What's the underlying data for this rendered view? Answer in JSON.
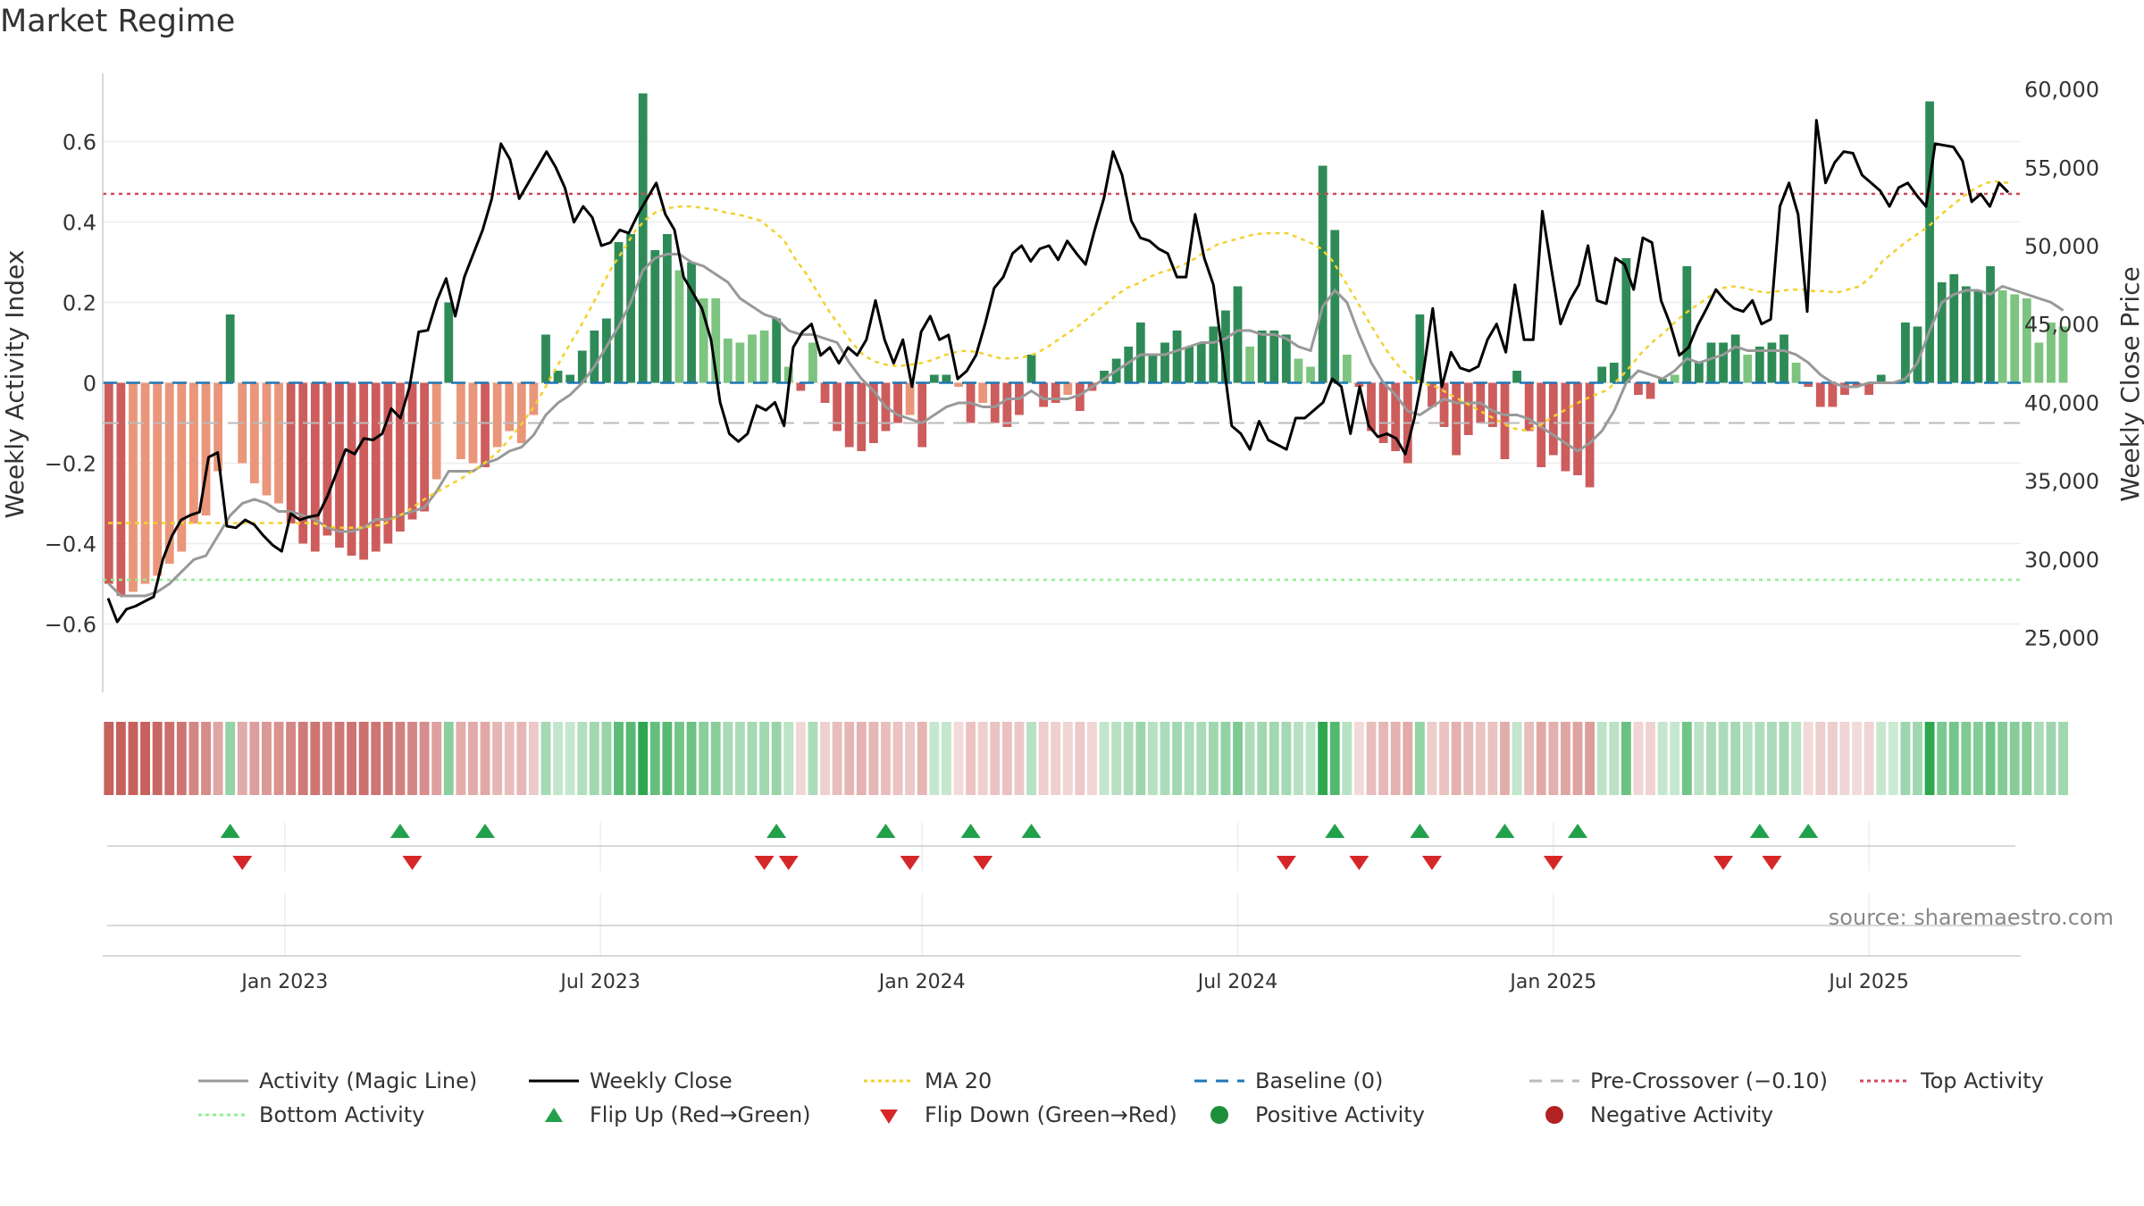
{
  "title": "Market Regime",
  "source": "source: sharemaestro.com",
  "colors": {
    "strongGreen": "#2e8b57",
    "lightGreen": "#7cc47f",
    "strongRed": "#cd5c5c",
    "lightRed": "#e9967a",
    "magic": "#999999",
    "close": "#000000",
    "ma20": "#f2d12e",
    "baseline": "#1f77b4",
    "preCross": "#bbbbbb",
    "top": "#d1495b",
    "bottom": "#90ee90",
    "flipUp": "#22a04b",
    "flipDown": "#d62728",
    "posDot": "#1e8f3a",
    "negDot": "#b22222"
  },
  "chart_data": {
    "type": "bar",
    "title": "Market Regime",
    "ylabel": "Weekly Activity Index",
    "y2label": "Weekly Close Price",
    "ylim": [
      -0.77,
      0.77
    ],
    "y2lim": [
      21500,
      61000
    ],
    "yticks": [
      "0.6",
      "0.4",
      "0.2",
      "0",
      "−0.2",
      "−0.4",
      "−0.6"
    ],
    "ytick_values": [
      0.6,
      0.4,
      0.2,
      0,
      -0.2,
      -0.4,
      -0.6
    ],
    "y2ticks": [
      "60,000",
      "55,000",
      "50,000",
      "45,000",
      "40,000",
      "35,000",
      "30,000",
      "25,000"
    ],
    "y2tick_values": [
      60000,
      55000,
      50000,
      45000,
      40000,
      35000,
      30000,
      25000
    ],
    "xticks": [
      "Jan 2023",
      "Jul 2023",
      "Jan 2024",
      "Jul 2024",
      "Jan 2025",
      "Jul 2025"
    ],
    "xtick_weeks": [
      15,
      41,
      67.5,
      93.5,
      119.5,
      145.5
    ],
    "n_weeks": 158,
    "top_activity": 0.47,
    "bottom_activity": -0.49,
    "pre_crossover": -0.1,
    "baseline": 0,
    "activity": [
      -0.5,
      -0.53,
      -0.52,
      -0.5,
      -0.48,
      -0.45,
      -0.42,
      -0.35,
      -0.33,
      -0.22,
      0.17,
      -0.2,
      -0.25,
      -0.28,
      -0.3,
      -0.35,
      -0.4,
      -0.42,
      -0.38,
      -0.41,
      -0.43,
      -0.44,
      -0.42,
      -0.4,
      -0.37,
      -0.34,
      -0.32,
      -0.24,
      0.2,
      -0.19,
      -0.2,
      -0.21,
      -0.16,
      -0.12,
      -0.15,
      -0.08,
      0.12,
      0.03,
      0.02,
      0.08,
      0.13,
      0.16,
      0.35,
      0.37,
      0.72,
      0.33,
      0.37,
      0.28,
      0.3,
      0.21,
      0.21,
      0.11,
      0.1,
      0.12,
      0.13,
      0.16,
      0.04,
      -0.02,
      0.1,
      -0.05,
      -0.12,
      -0.16,
      -0.17,
      -0.15,
      -0.12,
      -0.1,
      -0.08,
      -0.16,
      0.02,
      0.02,
      -0.01,
      -0.1,
      -0.05,
      -0.1,
      -0.11,
      -0.08,
      0.07,
      -0.06,
      -0.05,
      -0.03,
      -0.07,
      -0.02,
      0.03,
      0.06,
      0.09,
      0.15,
      0.07,
      0.1,
      0.13,
      0.09,
      0.1,
      0.14,
      0.18,
      0.24,
      0.09,
      0.13,
      0.13,
      0.12,
      0.06,
      0.04,
      0.54,
      0.38,
      0.07,
      -0.01,
      -0.12,
      -0.15,
      -0.17,
      -0.2,
      0.17,
      -0.06,
      -0.11,
      -0.18,
      -0.13,
      -0.1,
      -0.11,
      -0.19,
      0.03,
      -0.12,
      -0.21,
      -0.18,
      -0.22,
      -0.23,
      -0.26,
      0.04,
      0.05,
      0.31,
      -0.03,
      -0.04,
      0.01,
      0.02,
      0.29,
      0.05,
      0.1,
      0.1,
      0.12,
      0.07,
      0.09,
      0.1,
      0.12,
      0.05,
      -0.01,
      -0.06,
      -0.06,
      -0.03,
      -0.01,
      -0.03,
      0.02,
      0.0,
      0.15,
      0.14,
      0.7,
      0.25,
      0.27,
      0.24,
      0.23,
      0.29,
      0.23,
      0.22,
      0.21,
      0.1,
      0.15,
      0.14
    ],
    "magic_line": [
      -0.5,
      -0.53,
      -0.53,
      -0.53,
      -0.52,
      -0.5,
      -0.47,
      -0.44,
      -0.43,
      -0.38,
      -0.33,
      -0.3,
      -0.29,
      -0.3,
      -0.32,
      -0.32,
      -0.33,
      -0.34,
      -0.36,
      -0.37,
      -0.37,
      -0.36,
      -0.34,
      -0.34,
      -0.33,
      -0.32,
      -0.31,
      -0.27,
      -0.22,
      -0.22,
      -0.22,
      -0.2,
      -0.19,
      -0.17,
      -0.16,
      -0.13,
      -0.08,
      -0.05,
      -0.03,
      0.0,
      0.04,
      0.09,
      0.14,
      0.2,
      0.28,
      0.31,
      0.32,
      0.32,
      0.3,
      0.29,
      0.27,
      0.25,
      0.21,
      0.19,
      0.17,
      0.16,
      0.13,
      0.12,
      0.12,
      0.11,
      0.1,
      0.05,
      0.01,
      -0.02,
      -0.06,
      -0.08,
      -0.09,
      -0.1,
      -0.08,
      -0.06,
      -0.05,
      -0.05,
      -0.06,
      -0.06,
      -0.04,
      -0.04,
      -0.02,
      -0.04,
      -0.04,
      -0.04,
      -0.03,
      -0.01,
      0.01,
      0.03,
      0.05,
      0.07,
      0.07,
      0.07,
      0.08,
      0.09,
      0.1,
      0.1,
      0.11,
      0.13,
      0.13,
      0.12,
      0.12,
      0.11,
      0.09,
      0.08,
      0.19,
      0.23,
      0.2,
      0.12,
      0.05,
      0.0,
      -0.03,
      -0.07,
      -0.08,
      -0.06,
      -0.04,
      -0.05,
      -0.05,
      -0.05,
      -0.07,
      -0.08,
      -0.08,
      -0.09,
      -0.11,
      -0.13,
      -0.15,
      -0.17,
      -0.15,
      -0.12,
      -0.07,
      0.0,
      0.03,
      0.02,
      0.01,
      0.03,
      0.06,
      0.05,
      0.06,
      0.07,
      0.09,
      0.08,
      0.08,
      0.08,
      0.08,
      0.07,
      0.05,
      0.02,
      0.0,
      -0.01,
      -0.01,
      0.0,
      0.0,
      0.0,
      0.01,
      0.05,
      0.13,
      0.2,
      0.22,
      0.23,
      0.23,
      0.22,
      0.24,
      0.23,
      0.22,
      0.21,
      0.2,
      0.18
    ],
    "close": [
      27500,
      26000,
      26800,
      27000,
      27300,
      27600,
      30000,
      31500,
      32500,
      32800,
      33000,
      36500,
      36800,
      32100,
      32000,
      32500,
      32200,
      31500,
      30900,
      30500,
      32900,
      32500,
      32700,
      32800,
      34000,
      35500,
      37000,
      36700,
      37700,
      37600,
      38000,
      39600,
      39000,
      41000,
      44500,
      44600,
      46500,
      47900,
      45500,
      48000,
      49500,
      51000,
      53000,
      56500,
      55500,
      53000,
      54000,
      55000,
      56000,
      55000,
      53700,
      51500,
      52500,
      51800,
      50000,
      50200,
      51000,
      50800,
      52000,
      53000,
      54000,
      52000,
      51000,
      48000,
      47000,
      46000,
      44000,
      40000,
      38000,
      37500,
      38000,
      39800,
      39500,
      40000,
      38500,
      43500,
      44500,
      45000,
      43000,
      43500,
      42500,
      43500,
      43000,
      44000,
      46500,
      44000,
      42500,
      44000,
      41000,
      44500,
      45500,
      44000,
      44300,
      41500,
      42000,
      43000,
      45000,
      47300,
      48000,
      49500,
      50000,
      49000,
      49800,
      50000,
      49100,
      50300,
      49500,
      48800,
      51000,
      53000,
      56000,
      54500,
      51600,
      50500,
      50300,
      49800,
      49500,
      48000,
      48000,
      52000,
      49200,
      47500,
      43000,
      38500,
      38000,
      37000,
      38800,
      37600,
      37300,
      37000,
      39000,
      39000,
      39500,
      40000,
      41500,
      41000,
      38000,
      41000,
      38500,
      37800,
      38000,
      37700,
      36700,
      39000,
      42000,
      46000,
      41000,
      43200,
      42200,
      42000,
      42300,
      44000,
      45000,
      43200,
      47500,
      44000,
      44000,
      52200,
      48500,
      45000,
      46500,
      47500,
      50000,
      46500,
      46300,
      49200,
      48800,
      47200,
      50500,
      50200,
      46500,
      45000,
      43000,
      43500,
      44900,
      46000,
      47200,
      46500,
      46000,
      45800,
      46500,
      45000,
      45300,
      52500,
      54000,
      52000,
      45800,
      58000,
      54000,
      55300,
      56000,
      55900,
      54500,
      54000,
      53500,
      52500,
      53700,
      54000,
      53200,
      52500,
      56500,
      56400,
      56300,
      55400,
      52800,
      53300,
      52500,
      54000,
      53400
    ],
    "ma20": [
      32300,
      32300,
      32300,
      32300,
      32300,
      32300,
      32300,
      32300,
      32300,
      32300,
      32300,
      32300,
      32300,
      32300,
      32300,
      32300,
      32300,
      32300,
      32300,
      32100,
      32000,
      32000,
      32000,
      32100,
      32200,
      32600,
      33000,
      33500,
      34000,
      34400,
      34800,
      35200,
      35700,
      36200,
      36800,
      37600,
      38500,
      39500,
      40700,
      42000,
      43300,
      44500,
      45800,
      47200,
      48600,
      49700,
      50900,
      51700,
      52200,
      52400,
      52500,
      52500,
      52400,
      52300,
      52100,
      52000,
      51800,
      51600,
      51000,
      50400,
      49200,
      48200,
      47000,
      45800,
      44800,
      43800,
      43000,
      42600,
      42400,
      42300,
      42400,
      42500,
      42700,
      43000,
      43200,
      43300,
      43200,
      43000,
      42800,
      42800,
      42900,
      43100,
      43500,
      44000,
      44500,
      45000,
      45600,
      46200,
      46800,
      47300,
      47600,
      48000,
      48300,
      48500,
      48800,
      49200,
      49700,
      50100,
      50300,
      50500,
      50700,
      50800,
      50800,
      50800,
      50500,
      50200,
      49800,
      49000,
      47800,
      46600,
      45300,
      44100,
      43000,
      42100,
      41500,
      41200,
      41000,
      40600,
      40200,
      39800,
      39400,
      39000,
      38600,
      38300,
      38200,
      38500,
      39000,
      39400,
      39800,
      40200,
      40500,
      40800,
      41500,
      42300,
      43200,
      43900,
      44500,
      45200,
      45800,
      46300,
      46800,
      47300,
      47400,
      47300,
      47100,
      47000,
      47100,
      47200,
      47200,
      47100,
      47100,
      47000,
      47200,
      47400,
      48000,
      49000,
      49600,
      50200,
      50700,
      51200,
      51900,
      52500,
      53100,
      53600,
      54000,
      54100,
      54000
    ],
    "flip_up_weeks": [
      10,
      24,
      31,
      55,
      64,
      71,
      76,
      101,
      108,
      115,
      121,
      136,
      140
    ],
    "flip_down_weeks": [
      11,
      25,
      54,
      56,
      66,
      72,
      97,
      103,
      109,
      119,
      133,
      137
    ],
    "legend": [
      {
        "label": "Activity (Magic Line)",
        "kind": "line-solid-gray"
      },
      {
        "label": "Weekly Close",
        "kind": "line-solid-black"
      },
      {
        "label": "MA 20",
        "kind": "line-dotted-yellow"
      },
      {
        "label": "Baseline (0)",
        "kind": "line-dashed-blue"
      },
      {
        "label": "Pre-Crossover (−0.10)",
        "kind": "line-dashed-gray"
      },
      {
        "label": "Top Activity",
        "kind": "line-dotted-red"
      },
      {
        "label": "Bottom Activity",
        "kind": "line-dotted-green"
      },
      {
        "label": "Flip Up (Red→Green)",
        "kind": "triangle-up"
      },
      {
        "label": "Flip Down (Green→Red)",
        "kind": "triangle-down"
      },
      {
        "label": "Positive Activity",
        "kind": "dot-green"
      },
      {
        "label": "Negative Activity",
        "kind": "dot-red"
      }
    ]
  }
}
